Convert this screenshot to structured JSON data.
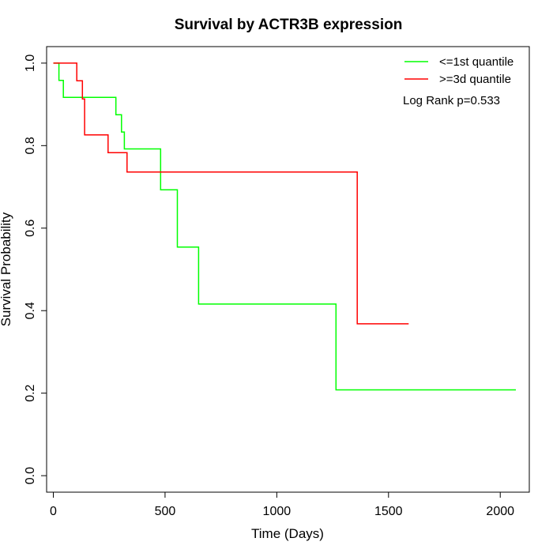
{
  "chart_data": {
    "type": "line",
    "title": "Survival by ACTR3B expression",
    "xlabel": "Time (Days)",
    "ylabel": "Survival Probability",
    "xlim": [
      -30,
      2130
    ],
    "ylim": [
      -0.04,
      1.04
    ],
    "x_ticks": [
      0,
      500,
      1000,
      1500,
      2000
    ],
    "x_tick_labels": [
      "0",
      "500",
      "1000",
      "1500",
      "2000"
    ],
    "y_ticks": [
      0.0,
      0.2,
      0.4,
      0.6,
      0.8,
      1.0
    ],
    "y_tick_labels": [
      "0.0",
      "0.2",
      "0.4",
      "0.6",
      "0.8",
      "1.0"
    ],
    "grid": false,
    "legend_position": "top-right",
    "annotation": "Log Rank p=0.533",
    "series": [
      {
        "name": "<=1st quantile",
        "color": "#00ff00",
        "x": [
          0,
          25,
          25,
          45,
          45,
          280,
          280,
          305,
          305,
          318,
          318,
          480,
          480,
          555,
          555,
          650,
          650,
          1265,
          1265,
          2070
        ],
        "y": [
          1.0,
          1.0,
          0.958,
          0.958,
          0.917,
          0.917,
          0.875,
          0.875,
          0.833,
          0.833,
          0.792,
          0.792,
          0.693,
          0.693,
          0.554,
          0.554,
          0.416,
          0.416,
          0.208,
          0.208
        ]
      },
      {
        "name": ">=3d quantile",
        "color": "#ff0000",
        "x": [
          0,
          105,
          105,
          130,
          130,
          140,
          140,
          245,
          245,
          330,
          330,
          1360,
          1360,
          1590
        ],
        "y": [
          1.0,
          1.0,
          0.957,
          0.957,
          0.913,
          0.913,
          0.826,
          0.826,
          0.783,
          0.783,
          0.736,
          0.736,
          0.368,
          0.368
        ]
      }
    ]
  }
}
